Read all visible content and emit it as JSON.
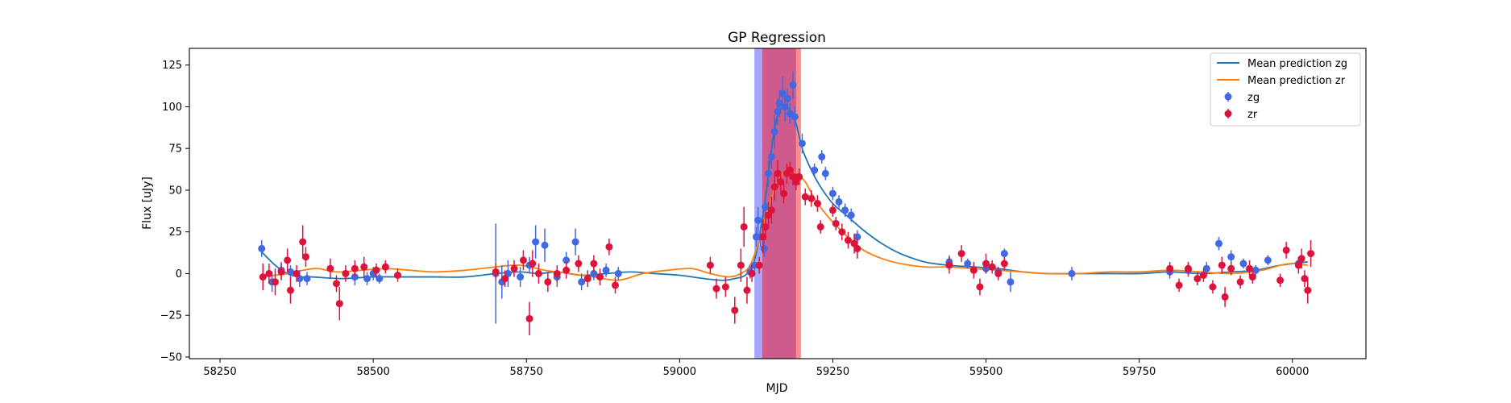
{
  "chart_data": {
    "type": "scatter",
    "title": "GP Regression",
    "xlabel": "MJD",
    "ylabel": "Flux [uJy]",
    "xlim": [
      58200,
      60120
    ],
    "ylim": [
      -51,
      135
    ],
    "xticks": [
      58250,
      58500,
      58750,
      59000,
      59250,
      59500,
      59750,
      60000
    ],
    "yticks": [
      -50,
      -25,
      0,
      25,
      50,
      75,
      100,
      125
    ],
    "grid": false,
    "legend_position": "top-right",
    "colors": {
      "mean_zg": "#1f77b4",
      "mean_zr": "#ff7f0e",
      "zg": "#4169e1",
      "zr": "#dc143c",
      "band_zg": "#0000ff",
      "band_zr": "#ff0000"
    },
    "shaded_regions": [
      {
        "x0": 59122,
        "x1": 59190,
        "color": "#0000ff",
        "alpha": 0.35
      },
      {
        "x0": 59135,
        "x1": 59198,
        "color": "#ff0000",
        "alpha": 0.45
      }
    ],
    "series": [
      {
        "name": "Mean prediction zg",
        "kind": "line",
        "color": "#1f77b4",
        "x": [
          58318,
          58340,
          58360,
          58380,
          58400,
          58450,
          58500,
          58550,
          58600,
          58650,
          58700,
          58740,
          58770,
          58800,
          58840,
          58880,
          58920,
          58960,
          59000,
          59040,
          59070,
          59090,
          59110,
          59125,
          59140,
          59150,
          59160,
          59170,
          59180,
          59190,
          59200,
          59215,
          59230,
          59250,
          59275,
          59300,
          59330,
          59360,
          59400,
          59440,
          59480,
          59520,
          59560,
          59600,
          59650,
          59700,
          59750,
          59800,
          59850,
          59900,
          59940,
          59980,
          60025
        ],
        "y": [
          13,
          5,
          0,
          -2,
          -2,
          -3,
          -2,
          -2,
          -2,
          -2,
          0,
          1,
          0,
          1,
          -1,
          0,
          1,
          0,
          -1,
          -3,
          -4,
          -3,
          0,
          12,
          45,
          75,
          95,
          100,
          98,
          90,
          75,
          62,
          52,
          42,
          34,
          26,
          18,
          12,
          7,
          5,
          4,
          3,
          1,
          0,
          0,
          0,
          0,
          1,
          0,
          1,
          2,
          5,
          7
        ]
      },
      {
        "name": "Mean prediction zr",
        "kind": "line",
        "color": "#ff7f0e",
        "x": [
          58318,
          58340,
          58360,
          58385,
          58410,
          58440,
          58480,
          58520,
          58560,
          58600,
          58650,
          58700,
          58740,
          58780,
          58820,
          58860,
          58900,
          58940,
          58980,
          59020,
          59050,
          59080,
          59100,
          59115,
          59130,
          59145,
          59160,
          59175,
          59190,
          59205,
          59220,
          59240,
          59260,
          59280,
          59300,
          59330,
          59360,
          59400,
          59440,
          59480,
          59520,
          59560,
          59600,
          59650,
          59700,
          59750,
          59800,
          59850,
          59900,
          59950,
          59980,
          60000,
          60025
        ],
        "y": [
          -2,
          -1,
          0,
          2,
          3,
          1,
          2,
          3,
          2,
          1,
          2,
          4,
          5,
          2,
          0,
          -2,
          -4,
          0,
          2,
          3,
          0,
          -2,
          0,
          5,
          20,
          40,
          55,
          62,
          60,
          55,
          45,
          35,
          27,
          20,
          14,
          9,
          6,
          4,
          4,
          3,
          2,
          1,
          0,
          0,
          1,
          1,
          2,
          1,
          0,
          2,
          5,
          6,
          5
        ]
      },
      {
        "name": "zg",
        "kind": "errorbar",
        "color": "#4169e1",
        "points": [
          [
            58318,
            15,
            5
          ],
          [
            58335,
            -5,
            6
          ],
          [
            58350,
            2,
            5
          ],
          [
            58365,
            1,
            4
          ],
          [
            58380,
            -3,
            5
          ],
          [
            58392,
            -3,
            4
          ],
          [
            58470,
            -2,
            5
          ],
          [
            58490,
            -3,
            4
          ],
          [
            58500,
            0,
            4
          ],
          [
            58510,
            -3,
            3
          ],
          [
            58700,
            0,
            30
          ],
          [
            58710,
            -5,
            10
          ],
          [
            58720,
            0,
            8
          ],
          [
            58740,
            -2,
            6
          ],
          [
            58755,
            5,
            5
          ],
          [
            58765,
            19,
            10
          ],
          [
            58780,
            17,
            10
          ],
          [
            58800,
            -2,
            6
          ],
          [
            58815,
            8,
            5
          ],
          [
            58830,
            19,
            8
          ],
          [
            58840,
            -5,
            5
          ],
          [
            58860,
            0,
            4
          ],
          [
            58880,
            2,
            4
          ],
          [
            58900,
            0,
            4
          ],
          [
            59115,
            1,
            4
          ],
          [
            59122,
            5,
            4
          ],
          [
            59125,
            22,
            6
          ],
          [
            59128,
            32,
            8
          ],
          [
            59132,
            22,
            6
          ],
          [
            59138,
            15,
            5
          ],
          [
            59140,
            40,
            6
          ],
          [
            59145,
            60,
            8
          ],
          [
            59150,
            70,
            7
          ],
          [
            59155,
            85,
            10
          ],
          [
            59160,
            97,
            8
          ],
          [
            59163,
            102,
            8
          ],
          [
            59168,
            108,
            10
          ],
          [
            59172,
            100,
            9
          ],
          [
            59176,
            105,
            6
          ],
          [
            59180,
            96,
            6
          ],
          [
            59185,
            113,
            8
          ],
          [
            59188,
            94,
            6
          ],
          [
            59200,
            78,
            6
          ],
          [
            59220,
            62,
            4
          ],
          [
            59232,
            70,
            4
          ],
          [
            59238,
            60,
            4
          ],
          [
            59250,
            48,
            4
          ],
          [
            59260,
            43,
            4
          ],
          [
            59270,
            38,
            4
          ],
          [
            59280,
            35,
            4
          ],
          [
            59290,
            22,
            4
          ],
          [
            59440,
            7,
            4
          ],
          [
            59470,
            6,
            3
          ],
          [
            59500,
            3,
            3
          ],
          [
            59520,
            1,
            3
          ],
          [
            59530,
            12,
            3
          ],
          [
            59540,
            -5,
            6
          ],
          [
            59640,
            0,
            4
          ],
          [
            59800,
            1,
            4
          ],
          [
            59830,
            2,
            4
          ],
          [
            59860,
            3,
            4
          ],
          [
            59880,
            18,
            4
          ],
          [
            59900,
            10,
            4
          ],
          [
            59920,
            6,
            3
          ],
          [
            59940,
            2,
            3
          ],
          [
            59960,
            8,
            3
          ],
          [
            60010,
            6,
            4
          ]
        ]
      },
      {
        "name": "zr",
        "kind": "errorbar",
        "color": "#dc143c",
        "points": [
          [
            58320,
            -2,
            8
          ],
          [
            58330,
            0,
            6
          ],
          [
            58340,
            -5,
            8
          ],
          [
            58350,
            1,
            5
          ],
          [
            58360,
            8,
            7
          ],
          [
            58365,
            -10,
            8
          ],
          [
            58375,
            0,
            5
          ],
          [
            58385,
            19,
            10
          ],
          [
            58390,
            10,
            6
          ],
          [
            58430,
            3,
            6
          ],
          [
            58440,
            -6,
            5
          ],
          [
            58445,
            -18,
            10
          ],
          [
            58455,
            0,
            5
          ],
          [
            58470,
            3,
            5
          ],
          [
            58485,
            4,
            6
          ],
          [
            58505,
            2,
            4
          ],
          [
            58520,
            4,
            4
          ],
          [
            58540,
            -1,
            4
          ],
          [
            58700,
            1,
            5
          ],
          [
            58715,
            -3,
            5
          ],
          [
            58730,
            3,
            5
          ],
          [
            58745,
            8,
            6
          ],
          [
            58755,
            -27,
            10
          ],
          [
            58760,
            6,
            8
          ],
          [
            58770,
            0,
            6
          ],
          [
            58785,
            -5,
            6
          ],
          [
            58800,
            0,
            5
          ],
          [
            58815,
            2,
            5
          ],
          [
            58835,
            6,
            5
          ],
          [
            58850,
            -3,
            5
          ],
          [
            58860,
            6,
            5
          ],
          [
            58870,
            -2,
            5
          ],
          [
            58885,
            16,
            5
          ],
          [
            58895,
            -7,
            5
          ],
          [
            59050,
            5,
            5
          ],
          [
            59060,
            -9,
            6
          ],
          [
            59075,
            -8,
            6
          ],
          [
            59090,
            -22,
            8
          ],
          [
            59100,
            5,
            10
          ],
          [
            59105,
            28,
            12
          ],
          [
            59110,
            -10,
            8
          ],
          [
            59118,
            0,
            5
          ],
          [
            59130,
            5,
            5
          ],
          [
            59136,
            22,
            10
          ],
          [
            59140,
            28,
            8
          ],
          [
            59145,
            35,
            8
          ],
          [
            59150,
            38,
            8
          ],
          [
            59155,
            52,
            8
          ],
          [
            59160,
            60,
            8
          ],
          [
            59165,
            55,
            6
          ],
          [
            59170,
            48,
            6
          ],
          [
            59175,
            60,
            6
          ],
          [
            59180,
            62,
            5
          ],
          [
            59185,
            58,
            5
          ],
          [
            59190,
            55,
            5
          ],
          [
            59195,
            58,
            5
          ],
          [
            59205,
            46,
            5
          ],
          [
            59215,
            45,
            5
          ],
          [
            59225,
            42,
            5
          ],
          [
            59230,
            28,
            4
          ],
          [
            59250,
            38,
            4
          ],
          [
            59255,
            30,
            4
          ],
          [
            59265,
            25,
            5
          ],
          [
            59275,
            20,
            5
          ],
          [
            59285,
            18,
            6
          ],
          [
            59290,
            15,
            6
          ],
          [
            59440,
            5,
            5
          ],
          [
            59460,
            12,
            5
          ],
          [
            59480,
            2,
            5
          ],
          [
            59490,
            -8,
            5
          ],
          [
            59500,
            6,
            6
          ],
          [
            59510,
            4,
            4
          ],
          [
            59520,
            0,
            4
          ],
          [
            59530,
            6,
            4
          ],
          [
            59800,
            3,
            4
          ],
          [
            59815,
            -7,
            4
          ],
          [
            59830,
            3,
            4
          ],
          [
            59845,
            -3,
            4
          ],
          [
            59855,
            -1,
            4
          ],
          [
            59870,
            -8,
            4
          ],
          [
            59885,
            5,
            5
          ],
          [
            59890,
            -14,
            6
          ],
          [
            59900,
            3,
            4
          ],
          [
            59915,
            -5,
            4
          ],
          [
            59930,
            3,
            5
          ],
          [
            59935,
            -2,
            4
          ],
          [
            59980,
            -4,
            4
          ],
          [
            59990,
            14,
            5
          ],
          [
            60010,
            5,
            5
          ],
          [
            60015,
            9,
            6
          ],
          [
            60020,
            -3,
            5
          ],
          [
            60025,
            -10,
            8
          ],
          [
            60030,
            12,
            8
          ]
        ]
      }
    ]
  }
}
